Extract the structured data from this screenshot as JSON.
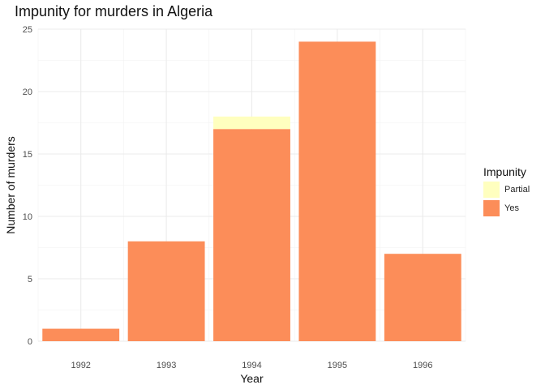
{
  "chart_data": {
    "type": "bar",
    "stacked": true,
    "title": "Impunity for murders in Algeria",
    "xlabel": "Year",
    "ylabel": "Number of murders",
    "categories": [
      "1992",
      "1993",
      "1994",
      "1995",
      "1996"
    ],
    "series": [
      {
        "name": "Yes",
        "color": "#fc8d59",
        "values": [
          1,
          8,
          17,
          24,
          7
        ]
      },
      {
        "name": "Partial",
        "color": "#ffffbf",
        "values": [
          0,
          0,
          1,
          0,
          0
        ]
      }
    ],
    "ylim": [
      0,
      25
    ],
    "yticks": [
      "0",
      "5",
      "10",
      "15",
      "20",
      "25"
    ],
    "grid": true,
    "legend": {
      "title": "Impunity",
      "position": "right",
      "entries": [
        "Partial",
        "Yes"
      ]
    }
  }
}
